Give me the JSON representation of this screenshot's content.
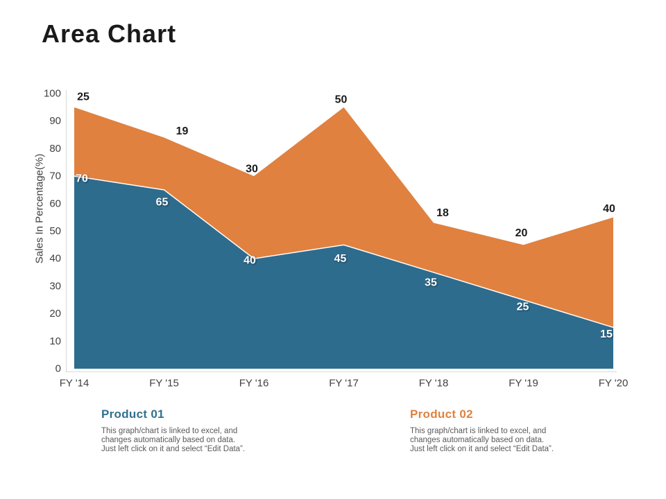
{
  "slide": {
    "title": "Area Chart"
  },
  "chart_data": {
    "type": "area",
    "stacked": true,
    "categories": [
      "FY '14",
      "FY '15",
      "FY '16",
      "FY '17",
      "FY '18",
      "FY '19",
      "FY '20"
    ],
    "series": [
      {
        "name": "Product 01",
        "color": "#2E6C8E",
        "values": [
          70,
          65,
          40,
          45,
          35,
          25,
          15
        ],
        "label_color": "#ffffff"
      },
      {
        "name": "Product 02",
        "color": "#E0813F",
        "values": [
          25,
          19,
          30,
          50,
          18,
          20,
          40
        ],
        "label_color": "#1a1a1a"
      }
    ],
    "stacked_totals": [
      95,
      84,
      70,
      95,
      53,
      45,
      55
    ],
    "title": "Area Chart",
    "xlabel": "",
    "ylabel": "Sales In Percentage(%)",
    "ylim": [
      0,
      100
    ],
    "yticks": [
      0,
      10,
      20,
      30,
      40,
      50,
      60,
      70,
      80,
      90,
      100
    ],
    "grid": false,
    "legend_position": "bottom",
    "axis_line_color": "#d9d9d9",
    "tick_label_color": "#404040"
  },
  "legend": {
    "items": [
      {
        "title": "Product 01",
        "color": "#31708F",
        "description": "This graph/chart is linked to excel, and\nchanges automatically based on data.\nJust left click on it and select “Edit Data”."
      },
      {
        "title": "Product 02",
        "color": "#E0813F",
        "description": "This graph/chart is linked to excel, and\nchanges automatically based on data.\nJust left click on it and select “Edit Data”."
      }
    ]
  }
}
